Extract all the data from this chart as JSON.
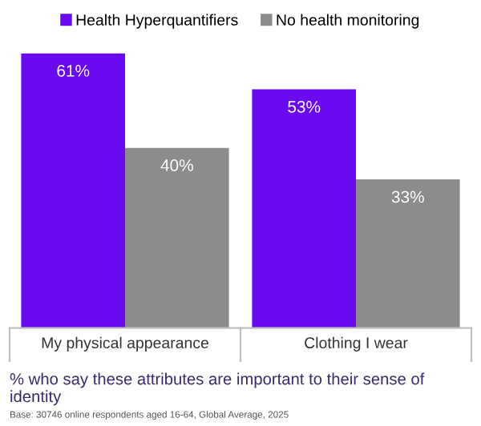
{
  "chart_data": {
    "type": "bar",
    "categories": [
      "My physical appearance",
      "Clothing I wear"
    ],
    "series": [
      {
        "name": "Health Hyperquantifiers",
        "color": "#6a0af0",
        "values": [
          61,
          53
        ],
        "value_labels": [
          "61%",
          "53%"
        ]
      },
      {
        "name": "No health monitoring",
        "color": "#8c8c8c",
        "values": [
          40,
          33
        ],
        "value_labels": [
          "40%",
          "33%"
        ]
      }
    ],
    "legend": "top",
    "tick_labels": "x",
    "title": "% who say these attributes are important to their sense of identity",
    "annotations": [
      "Base: 30746 online respondents aged 16-64, Global Average, 2025"
    ]
  }
}
